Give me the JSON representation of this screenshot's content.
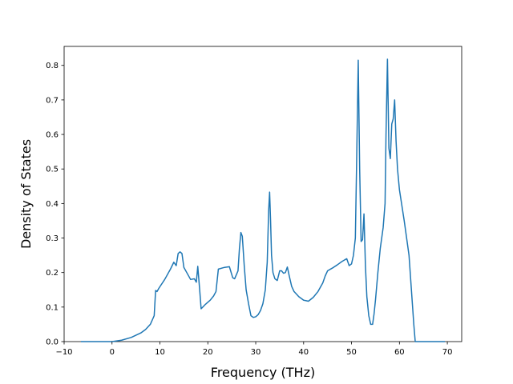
{
  "chart_data": {
    "type": "line",
    "title": "",
    "xlabel": "Frequency (THz)",
    "ylabel": "Density of States",
    "xlim": [
      -10,
      73
    ],
    "ylim": [
      0,
      0.855
    ],
    "xticks": [
      -10,
      0,
      10,
      20,
      30,
      40,
      50,
      60,
      70
    ],
    "yticks": [
      0.0,
      0.1,
      0.2,
      0.3,
      0.4,
      0.5,
      0.6,
      0.7,
      0.8
    ],
    "grid": false,
    "colors": {
      "line": "#1f77b4"
    },
    "series": [
      {
        "x": [
          -6.5,
          0,
          2,
          4,
          6,
          7,
          8,
          8.8,
          9.1,
          9.4,
          9.8,
          11,
          12.2,
          12.9,
          13.4,
          13.8,
          14.2,
          14.6,
          15,
          15.6,
          16.4,
          17.2,
          17.6,
          17.9,
          18.3,
          18.6,
          19.5,
          20.5,
          21.2,
          21.7,
          22.2,
          23.5,
          24.5,
          25.2,
          25.6,
          26,
          26.3,
          26.6,
          26.9,
          27.2,
          27.6,
          28,
          28.5,
          29,
          29.5,
          30,
          30.5,
          31,
          31.5,
          32,
          32.4,
          32.7,
          32.9,
          33.1,
          33.3,
          33.6,
          34,
          34.5,
          35,
          35.4,
          35.8,
          36.2,
          36.6,
          37,
          37.5,
          38,
          39,
          40,
          41,
          42,
          43,
          44,
          44.5,
          45,
          46,
          47,
          48,
          48.6,
          49,
          49.5,
          50,
          50.4,
          50.8,
          51.1,
          51.4,
          51.7,
          52,
          52.3,
          52.6,
          52.9,
          53.2,
          53.6,
          54,
          54.4,
          54.7,
          55,
          55.5,
          56,
          56.6,
          57,
          57.2,
          57.5,
          57.8,
          58.1,
          58.4,
          58.7,
          59,
          59.3,
          59.6,
          60,
          61,
          62,
          62.5,
          63,
          63.3,
          64,
          69.5
        ],
        "y": [
          0.0,
          0.0,
          0.004,
          0.012,
          0.025,
          0.035,
          0.05,
          0.075,
          0.148,
          0.145,
          0.155,
          0.18,
          0.21,
          0.23,
          0.22,
          0.255,
          0.26,
          0.255,
          0.215,
          0.2,
          0.18,
          0.182,
          0.172,
          0.218,
          0.15,
          0.095,
          0.108,
          0.12,
          0.132,
          0.145,
          0.21,
          0.215,
          0.217,
          0.185,
          0.182,
          0.195,
          0.205,
          0.27,
          0.316,
          0.305,
          0.22,
          0.15,
          0.11,
          0.075,
          0.07,
          0.072,
          0.078,
          0.09,
          0.11,
          0.15,
          0.23,
          0.38,
          0.433,
          0.35,
          0.25,
          0.2,
          0.182,
          0.177,
          0.205,
          0.205,
          0.198,
          0.2,
          0.216,
          0.19,
          0.16,
          0.145,
          0.13,
          0.12,
          0.117,
          0.128,
          0.145,
          0.17,
          0.19,
          0.205,
          0.213,
          0.222,
          0.232,
          0.237,
          0.24,
          0.22,
          0.225,
          0.25,
          0.3,
          0.55,
          0.815,
          0.5,
          0.29,
          0.295,
          0.37,
          0.22,
          0.13,
          0.075,
          0.05,
          0.05,
          0.08,
          0.12,
          0.2,
          0.27,
          0.33,
          0.4,
          0.6,
          0.818,
          0.56,
          0.53,
          0.63,
          0.645,
          0.7,
          0.58,
          0.5,
          0.44,
          0.35,
          0.25,
          0.15,
          0.05,
          0.0,
          0.0,
          0.0
        ]
      }
    ]
  }
}
